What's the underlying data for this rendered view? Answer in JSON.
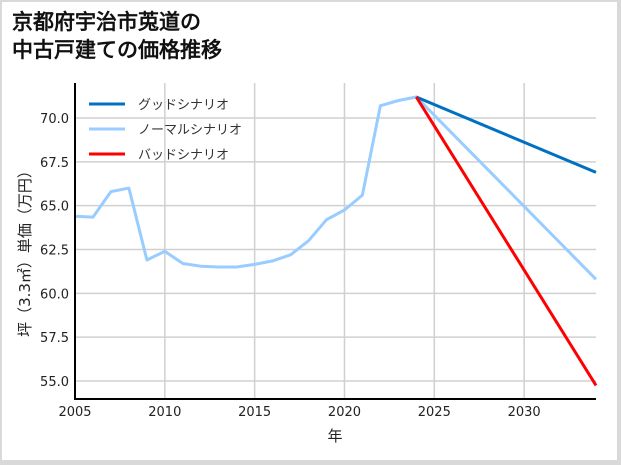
{
  "title": "京都府宇治市莵道の\n中古戸建ての価格推移",
  "chart_data": {
    "type": "line",
    "title": "京都府宇治市莵道の中古戸建ての価格推移",
    "xlabel": "年",
    "ylabel": "坪（3.3㎡）単価（万円）",
    "xlim": [
      2005,
      2034
    ],
    "ylim": [
      54.0,
      72.0
    ],
    "x_ticks": [
      2005,
      2010,
      2015,
      2020,
      2025,
      2030
    ],
    "y_ticks": [
      55.0,
      57.5,
      60.0,
      62.5,
      65.0,
      67.5,
      70.0
    ],
    "grid": true,
    "legend_position": "upper left",
    "series": [
      {
        "name": "グッドシナリオ",
        "color": "#0070c0",
        "x": [
          2024,
          2034
        ],
        "values": [
          71.2,
          66.9
        ]
      },
      {
        "name": "ノーマルシナリオ",
        "color": "#99ccff",
        "x": [
          2005,
          2006,
          2007,
          2008,
          2009,
          2010,
          2011,
          2012,
          2013,
          2014,
          2015,
          2016,
          2017,
          2018,
          2019,
          2020,
          2021,
          2022,
          2023,
          2024,
          2034
        ],
        "values": [
          64.4,
          64.35,
          65.8,
          66.0,
          61.9,
          62.4,
          61.7,
          61.55,
          61.5,
          61.5,
          61.65,
          61.85,
          62.2,
          63.0,
          64.2,
          64.75,
          65.6,
          70.7,
          71.0,
          71.2,
          60.8
        ]
      },
      {
        "name": "バッドシナリオ",
        "color": "#ff0000",
        "x": [
          2024,
          2034
        ],
        "values": [
          71.2,
          54.75
        ]
      }
    ]
  }
}
